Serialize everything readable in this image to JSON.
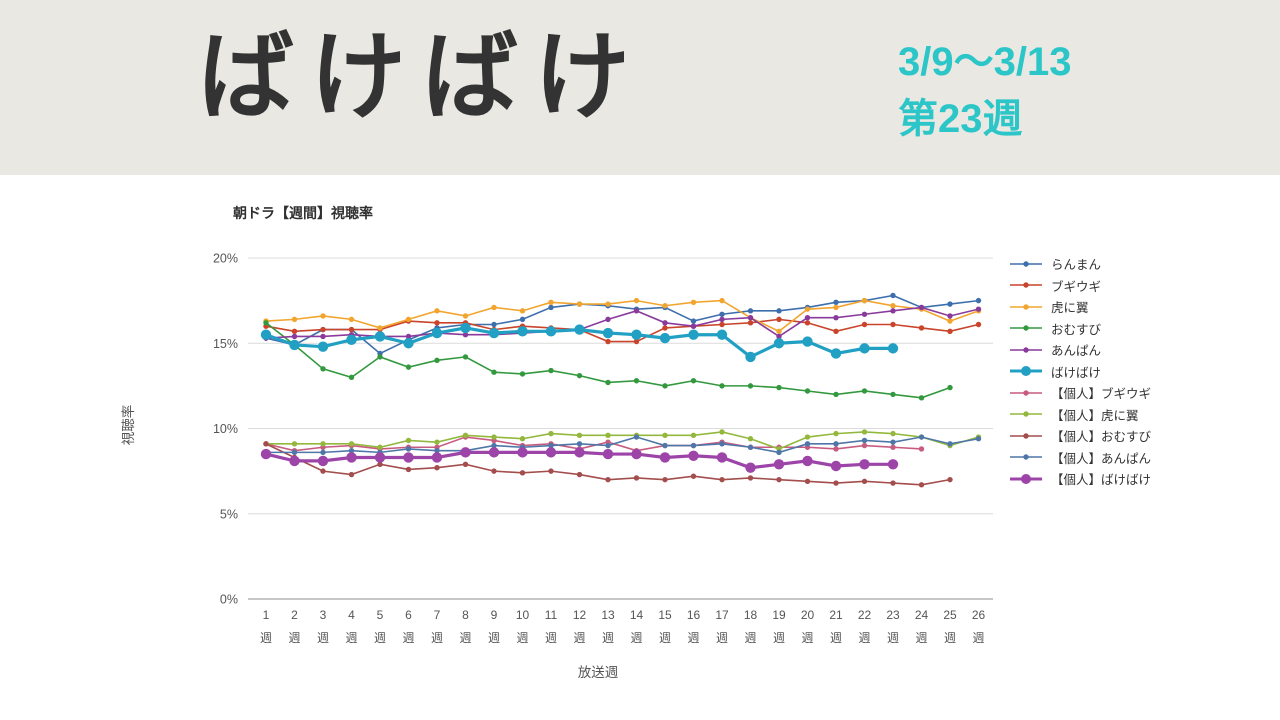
{
  "header": {
    "title": "ばけばけ",
    "date_range": "3/9〜3/13",
    "week_label": "第23週",
    "accent_color": "#2cc6c8",
    "background_color": "#e9e8e2",
    "title_color": "#333333"
  },
  "chart_data": {
    "type": "line",
    "title": "朝ドラ【週間】視聴率",
    "xlabel": "放送週",
    "ylabel": "視聴率",
    "x_suffix": "週",
    "x": [
      1,
      2,
      3,
      4,
      5,
      6,
      7,
      8,
      9,
      10,
      11,
      12,
      13,
      14,
      15,
      16,
      17,
      18,
      19,
      20,
      21,
      22,
      23,
      24,
      25,
      26
    ],
    "ylim": [
      0,
      20
    ],
    "y_ticks": [
      {
        "value": 0,
        "label": "0%"
      },
      {
        "value": 5,
        "label": "5%"
      },
      {
        "value": 10,
        "label": "10%"
      },
      {
        "value": 15,
        "label": "15%"
      },
      {
        "value": 20,
        "label": "20%"
      }
    ],
    "grid": true,
    "legend_position": "right",
    "series": [
      {
        "name": "らんまん",
        "color": "#3e6fad",
        "emphasis": false,
        "values": [
          15.3,
          14.9,
          15.8,
          15.8,
          14.4,
          15.2,
          15.9,
          16.1,
          16.1,
          16.4,
          17.1,
          17.3,
          17.2,
          17.0,
          17.1,
          16.3,
          16.7,
          16.9,
          16.9,
          17.1,
          17.4,
          17.5,
          17.8,
          17.1,
          17.3,
          17.5
        ]
      },
      {
        "name": "ブギウギ",
        "color": "#c9442a",
        "emphasis": false,
        "values": [
          16.0,
          15.7,
          15.8,
          15.8,
          15.8,
          16.3,
          16.2,
          16.2,
          15.8,
          16.0,
          15.9,
          15.8,
          15.1,
          15.1,
          15.9,
          16.0,
          16.1,
          16.2,
          16.4,
          16.2,
          15.7,
          16.1,
          16.1,
          15.9,
          15.7,
          16.1
        ]
      },
      {
        "name": "虎に翼",
        "color": "#f2a52e",
        "emphasis": false,
        "values": [
          16.3,
          16.4,
          16.6,
          16.4,
          15.9,
          16.4,
          16.9,
          16.6,
          17.1,
          16.9,
          17.4,
          17.3,
          17.3,
          17.5,
          17.2,
          17.4,
          17.5,
          16.5,
          15.7,
          17.0,
          17.1,
          17.5,
          17.2,
          17.0,
          16.3,
          16.9
        ]
      },
      {
        "name": "おむすび",
        "color": "#33993f",
        "emphasis": false,
        "values": [
          16.2,
          14.9,
          13.5,
          13.0,
          14.2,
          13.6,
          14.0,
          14.2,
          13.3,
          13.2,
          13.4,
          13.1,
          12.7,
          12.8,
          12.5,
          12.8,
          12.5,
          12.5,
          12.4,
          12.2,
          12.0,
          12.2,
          12.0,
          11.8,
          12.4
        ]
      },
      {
        "name": "あんぱん",
        "color": "#8a3a9b",
        "emphasis": false,
        "values": [
          15.3,
          15.4,
          15.4,
          15.5,
          15.4,
          15.4,
          15.6,
          15.5,
          15.5,
          15.6,
          15.7,
          15.8,
          16.4,
          16.9,
          16.2,
          16.0,
          16.4,
          16.5,
          15.4,
          16.5,
          16.5,
          16.7,
          16.9,
          17.1,
          16.6,
          17.0
        ]
      },
      {
        "name": "ばけばけ",
        "color": "#21a0c4",
        "emphasis": true,
        "values": [
          15.5,
          14.9,
          14.8,
          15.2,
          15.4,
          15.0,
          15.6,
          15.9,
          15.6,
          15.7,
          15.7,
          15.8,
          15.6,
          15.5,
          15.3,
          15.5,
          15.5,
          14.2,
          15.0,
          15.1,
          14.4,
          14.7,
          14.7
        ]
      },
      {
        "name": "【個人】ブギウギ",
        "color": "#c75c80",
        "emphasis": false,
        "values": [
          9.1,
          8.7,
          8.9,
          9.0,
          8.8,
          8.9,
          8.9,
          9.5,
          9.3,
          9.0,
          9.1,
          8.8,
          9.2,
          8.7,
          9.0,
          9.0,
          9.2,
          8.9,
          8.9,
          8.9,
          8.8,
          9.0,
          8.9,
          8.8
        ]
      },
      {
        "name": "【個人】虎に翼",
        "color": "#93b83d",
        "emphasis": false,
        "values": [
          9.1,
          9.1,
          9.1,
          9.1,
          8.9,
          9.3,
          9.2,
          9.6,
          9.5,
          9.4,
          9.7,
          9.6,
          9.6,
          9.6,
          9.6,
          9.6,
          9.8,
          9.4,
          8.8,
          9.5,
          9.7,
          9.8,
          9.7,
          9.5,
          9.0,
          9.5
        ]
      },
      {
        "name": "【個人】おむすび",
        "color": "#a34d4d",
        "emphasis": false,
        "values": [
          9.1,
          8.3,
          7.5,
          7.3,
          7.9,
          7.6,
          7.7,
          7.9,
          7.5,
          7.4,
          7.5,
          7.3,
          7.0,
          7.1,
          7.0,
          7.2,
          7.0,
          7.1,
          7.0,
          6.9,
          6.8,
          6.9,
          6.8,
          6.7,
          7.0
        ]
      },
      {
        "name": "【個人】あんぱん",
        "color": "#4e76a8",
        "emphasis": false,
        "values": [
          8.6,
          8.6,
          8.6,
          8.7,
          8.6,
          8.8,
          8.7,
          8.7,
          9.0,
          8.9,
          9.0,
          9.1,
          9.0,
          9.5,
          9.0,
          9.0,
          9.1,
          8.9,
          8.6,
          9.1,
          9.1,
          9.3,
          9.2,
          9.5,
          9.1,
          9.4
        ]
      },
      {
        "name": "【個人】ばけばけ",
        "color": "#9d44a8",
        "emphasis": true,
        "values": [
          8.5,
          8.1,
          8.1,
          8.3,
          8.3,
          8.3,
          8.3,
          8.6,
          8.6,
          8.6,
          8.6,
          8.6,
          8.5,
          8.5,
          8.3,
          8.4,
          8.3,
          7.7,
          7.9,
          8.1,
          7.8,
          7.9,
          7.9
        ]
      }
    ]
  }
}
